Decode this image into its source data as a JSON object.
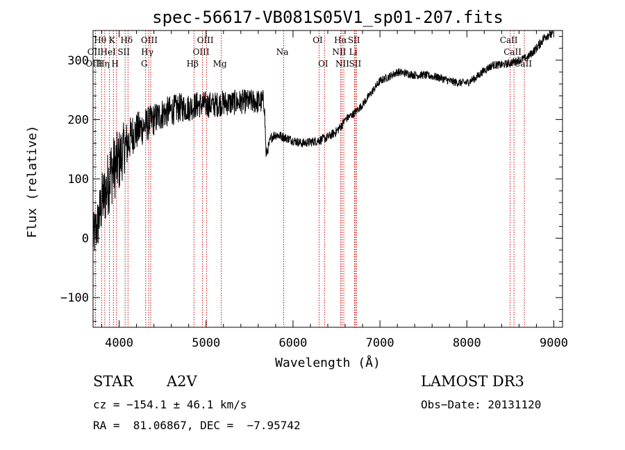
{
  "chart_data": {
    "type": "line",
    "title": "spec-56617-VB081S05V1_sp01-207.fits",
    "xlabel": "Wavelength (Å)",
    "ylabel": "Flux (relative)",
    "xlim": [
      3700,
      9100
    ],
    "ylim": [
      -150,
      350
    ],
    "x_ticks": [
      4000,
      5000,
      6000,
      7000,
      8000,
      9000
    ],
    "y_ticks": [
      -100,
      0,
      100,
      200,
      300
    ],
    "x_tick_labels": [
      "4000",
      "5000",
      "6000",
      "7000",
      "8000",
      "9000"
    ],
    "y_tick_labels": [
      "−100",
      "0",
      "100",
      "200",
      "300"
    ],
    "grid": false,
    "series": [
      {
        "name": "flux",
        "x": [
          3700,
          3750,
          3800,
          3850,
          3900,
          3950,
          4000,
          4050,
          4100,
          4150,
          4200,
          4300,
          4400,
          4500,
          4600,
          4700,
          4800,
          4900,
          5000,
          5100,
          5200,
          5300,
          5400,
          5500,
          5600,
          5670,
          5690,
          5750,
          5800,
          5900,
          6000,
          6100,
          6200,
          6300,
          6400,
          6500,
          6560,
          6600,
          6700,
          6800,
          6900,
          7000,
          7100,
          7200,
          7300,
          7400,
          7500,
          7600,
          7700,
          7800,
          7900,
          8000,
          8100,
          8200,
          8300,
          8400,
          8500,
          8600,
          8700,
          8800,
          8900,
          8950,
          8990
        ],
        "y": [
          0,
          20,
          60,
          80,
          110,
          120,
          130,
          150,
          160,
          175,
          180,
          190,
          200,
          210,
          215,
          220,
          220,
          225,
          225,
          225,
          228,
          228,
          230,
          230,
          230,
          230,
          140,
          170,
          175,
          170,
          165,
          160,
          162,
          165,
          170,
          180,
          190,
          200,
          210,
          225,
          245,
          265,
          272,
          280,
          278,
          275,
          275,
          273,
          270,
          265,
          262,
          262,
          270,
          283,
          292,
          292,
          295,
          300,
          305,
          320,
          340,
          345,
          340
        ],
        "noise": [
          40,
          45,
          50,
          55,
          60,
          55,
          55,
          45,
          40,
          35,
          33,
          30,
          28,
          27,
          26,
          25,
          24,
          23,
          23,
          22,
          22,
          22,
          21,
          21,
          21,
          21,
          10,
          9,
          9,
          8,
          8,
          8,
          8,
          8,
          8,
          8,
          8,
          7,
          7,
          7,
          7,
          7,
          7,
          7,
          7,
          7,
          7,
          7,
          7,
          7,
          7,
          7,
          7,
          7,
          7,
          7,
          7,
          7,
          7,
          8,
          9,
          9,
          9
        ]
      }
    ],
    "lines": [
      {
        "name": "Hθ",
        "wl": 3798,
        "tier": 1
      },
      {
        "name": "OII",
        "wl": 3727,
        "tier": 2
      },
      {
        "name": "OIII",
        "wl": 3727,
        "tier": 3
      },
      {
        "name": "K",
        "wl": 3934,
        "tier": 1
      },
      {
        "name": "HeI",
        "wl": 3889,
        "tier": 2
      },
      {
        "name": "Hη",
        "wl": 3835,
        "tier": 3
      },
      {
        "name": "H",
        "wl": 3969,
        "tier": 3
      },
      {
        "name": "SII",
        "wl": 4069,
        "tier": 2
      },
      {
        "name": "Hδ",
        "wl": 4102,
        "tier": 1
      },
      {
        "name": "OIII",
        "wl": 4363,
        "tier": 1
      },
      {
        "name": "Hγ",
        "wl": 4340,
        "tier": 2
      },
      {
        "name": "G",
        "wl": 4305,
        "tier": 3
      },
      {
        "name": "OIII",
        "wl": 5007,
        "tier": 1
      },
      {
        "name": "OIII",
        "wl": 4959,
        "tier": 2
      },
      {
        "name": "Hβ",
        "wl": 4861,
        "tier": 3
      },
      {
        "name": "Mg",
        "wl": 5175,
        "tier": 3
      },
      {
        "name": "Na",
        "wl": 5893,
        "tier": 2
      },
      {
        "name": "OI",
        "wl": 6300,
        "tier": 1
      },
      {
        "name": "OI",
        "wl": 6363,
        "tier": 3
      },
      {
        "name": "Hα",
        "wl": 6563,
        "tier": 1
      },
      {
        "name": "SII",
        "wl": 6717,
        "tier": 1
      },
      {
        "name": "NII",
        "wl": 6548,
        "tier": 2
      },
      {
        "name": "Li",
        "wl": 6708,
        "tier": 2
      },
      {
        "name": "NII",
        "wl": 6584,
        "tier": 3
      },
      {
        "name": "SII",
        "wl": 6731,
        "tier": 3
      },
      {
        "name": "CaII",
        "wl": 8498,
        "tier": 1
      },
      {
        "name": "CaII",
        "wl": 8542,
        "tier": 2
      },
      {
        "name": "CaII",
        "wl": 8662,
        "tier": 3
      }
    ]
  },
  "info": {
    "class": "STAR",
    "subclass": "A2V",
    "survey": "LAMOST DR3",
    "cz": "cz = −154.1 ± 46.1 km/s",
    "obs_date": "Obs−Date: 20131120",
    "coords": "RA =  81.06867, DEC =  −7.95742"
  },
  "colors": {
    "line_marker": "#cc0000",
    "spectrum": "#000000"
  }
}
